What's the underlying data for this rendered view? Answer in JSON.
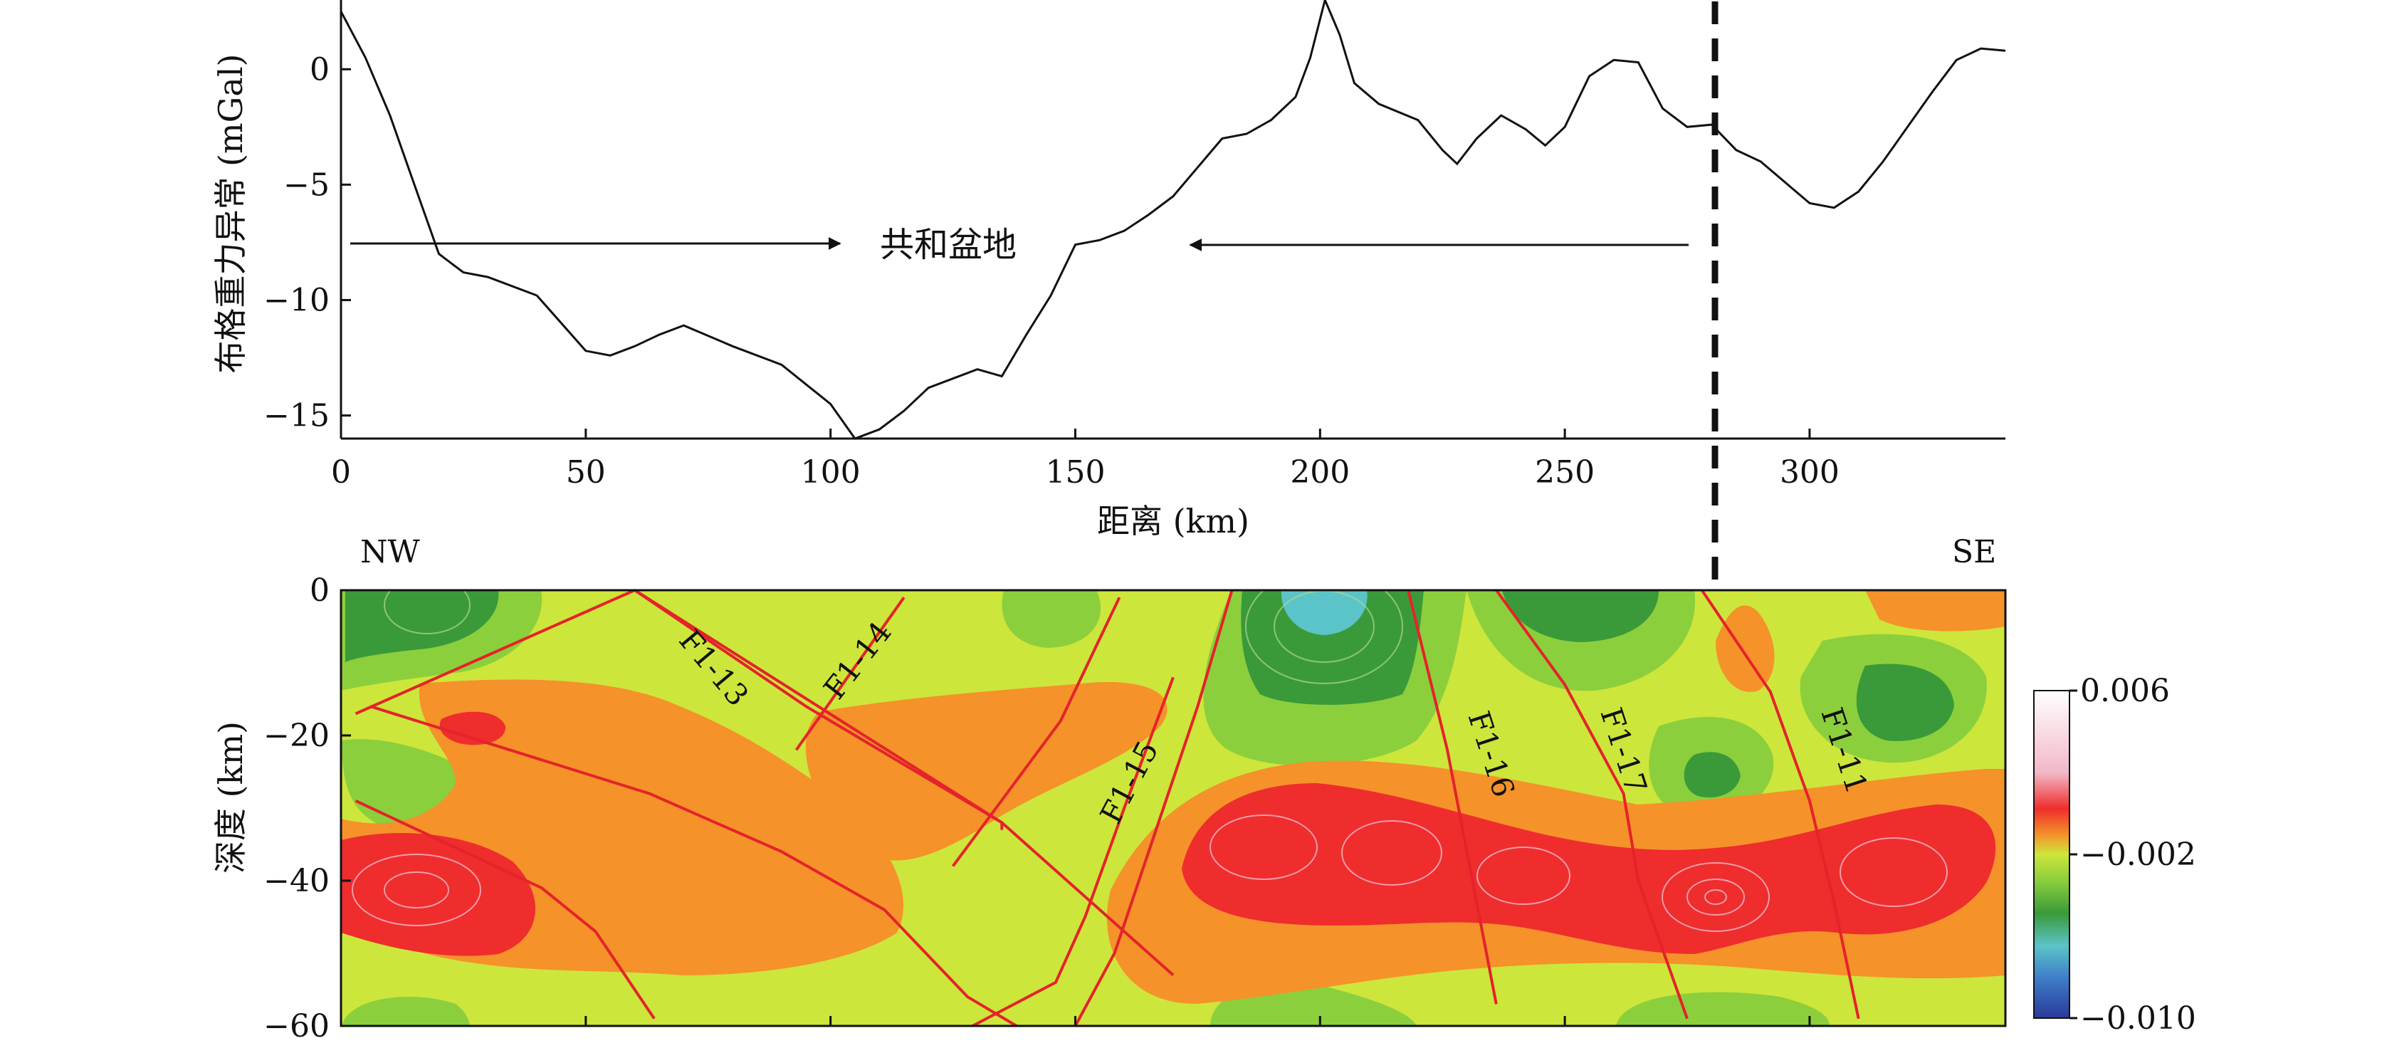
{
  "chart_data": [
    {
      "type": "line",
      "ylabel": "布格重力异常 (mGal)",
      "xlabel": "距离 (km)",
      "xlim": [
        0,
        340
      ],
      "ylim": [
        -16,
        3
      ],
      "xticks": [
        "0",
        "50",
        "100",
        "150",
        "200",
        "250",
        "300"
      ],
      "yticks": [
        "0",
        "−5",
        "−10",
        "−15"
      ],
      "series": [
        {
          "x": [
            0,
            5,
            10,
            15,
            20,
            25,
            30,
            40,
            50,
            55,
            60,
            65,
            70,
            80,
            90,
            100,
            105,
            110,
            115,
            120,
            130,
            135,
            140,
            145,
            150,
            155,
            160,
            165,
            170,
            180,
            185,
            190,
            195,
            198,
            201,
            204,
            207,
            212,
            220,
            225,
            228,
            232,
            237,
            242,
            246,
            250,
            255,
            260,
            265,
            270,
            275,
            280,
            285,
            290,
            300,
            305,
            310,
            315,
            320,
            325,
            330,
            335,
            340
          ],
          "y": [
            2.5,
            0.5,
            -2.0,
            -5.0,
            -8.0,
            -8.8,
            -9.0,
            -9.8,
            -12.2,
            -12.4,
            -12.0,
            -11.5,
            -11.1,
            -12.0,
            -12.8,
            -14.5,
            -16.0,
            -15.6,
            -14.8,
            -13.8,
            -13.0,
            -13.3,
            -11.5,
            -9.8,
            -7.6,
            -7.4,
            -7.0,
            -6.3,
            -5.5,
            -3.0,
            -2.8,
            -2.2,
            -1.2,
            0.5,
            3.0,
            1.5,
            -0.6,
            -1.5,
            -2.2,
            -3.5,
            -4.1,
            -3.0,
            -2.0,
            -2.6,
            -3.3,
            -2.5,
            -0.3,
            0.4,
            0.3,
            -1.7,
            -2.5,
            -2.4,
            -3.5,
            -4.0,
            -5.8,
            -6.0,
            -5.3,
            -4.0,
            -2.5,
            -1.0,
            0.4,
            0.9,
            0.8
          ]
        }
      ],
      "annotations": [
        {
          "text": "共和盆地",
          "x": 127,
          "y": -7.4
        },
        {
          "type": "arrow",
          "from": [
            2,
            -7.3
          ],
          "to": [
            103,
            -7.3
          ]
        },
        {
          "type": "arrow",
          "from": [
            275,
            -7.4
          ],
          "to": [
            173,
            -7.4
          ]
        }
      ],
      "vline": {
        "x": 280,
        "style": "dashed"
      }
    },
    {
      "type": "heatmap",
      "ylabel": "深度 (km)",
      "xlim": [
        0,
        340
      ],
      "ylim": [
        -60,
        0
      ],
      "yticks": [
        "0",
        "−20",
        "−40",
        "−60"
      ],
      "corner_labels": {
        "left": "NW",
        "right": "SE"
      },
      "colorbar": {
        "ticks": [
          "0.006",
          "−0.002",
          "−0.010"
        ],
        "min": -0.01,
        "max": 0.006
      },
      "faults": [
        {
          "name": "F1-13",
          "points": [
            [
              60,
              0
            ],
            [
              135,
              -30
            ],
            [
              135,
              -30
            ],
            [
              135,
              -56
            ]
          ]
        },
        {
          "name": "F1-14",
          "points": [
            [
              115,
              -1
            ],
            [
              93,
              -22
            ]
          ]
        },
        {
          "name": "F1-15",
          "points": [
            [
              158,
              -14
            ],
            [
              139,
              -58
            ]
          ]
        },
        {
          "name": "F1-16",
          "points": [
            [
              218,
              0
            ],
            [
              236,
              -57
            ]
          ]
        },
        {
          "name": "F1-17",
          "points": [
            [
              235,
              0
            ],
            [
              264,
              -59
            ]
          ]
        },
        {
          "name": "F1-11",
          "points": [
            [
              278,
              0
            ],
            [
              305,
              -59
            ]
          ]
        }
      ]
    }
  ]
}
